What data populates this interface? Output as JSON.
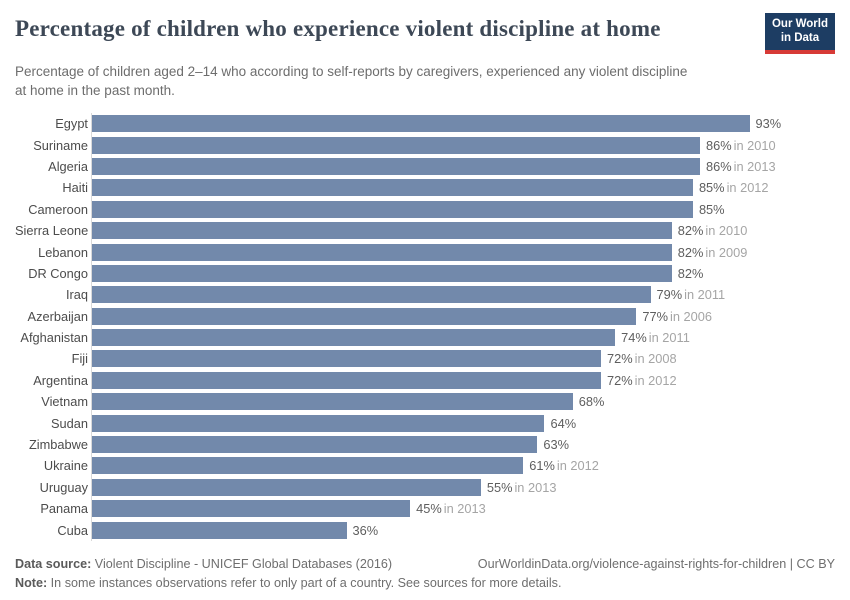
{
  "header": {
    "title": "Percentage of children who experience violent discipline at home",
    "logo": {
      "line1": "Our World",
      "line2": "in Data"
    }
  },
  "subtitle": "Percentage of children aged 2–14 who according to self-reports by caregivers, experienced any violent discipline at home in the past month.",
  "chart_data": {
    "type": "bar",
    "orientation": "horizontal",
    "title": "Percentage of children who experience violent discipline at home",
    "unit": "%",
    "xlim": [
      0,
      100
    ],
    "grid": false,
    "legend": false,
    "categories": [
      "Egypt",
      "Suriname",
      "Algeria",
      "Haiti",
      "Cameroon",
      "Sierra Leone",
      "Lebanon",
      "DR Congo",
      "Iraq",
      "Azerbaijan",
      "Afghanistan",
      "Fiji",
      "Argentina",
      "Vietnam",
      "Sudan",
      "Zimbabwe",
      "Ukraine",
      "Uruguay",
      "Panama",
      "Cuba"
    ],
    "values": [
      93,
      86,
      86,
      85,
      85,
      82,
      82,
      82,
      79,
      77,
      74,
      72,
      72,
      68,
      64,
      63,
      61,
      55,
      45,
      36
    ],
    "year_labels": [
      "",
      "in 2010",
      "in 2013",
      "in 2012",
      "",
      "in 2010",
      "in 2009",
      "",
      "in 2011",
      "in 2006",
      "in 2011",
      "in 2008",
      "in 2012",
      "",
      "",
      "",
      "in 2012",
      "in 2013",
      "in 2013",
      ""
    ]
  },
  "footer": {
    "datasource_label": "Data source:",
    "datasource_text": " Violent Discipline - UNICEF Global Databases (2016)",
    "url_text": "OurWorldinData.org/violence-against-rights-for-children | CC BY",
    "note_label": "Note:",
    "note_text": " In some instances observations refer to only part of a country. See sources for more details."
  },
  "colors": {
    "bar": "#7289ab",
    "axis_line": "#d9d9d9",
    "logo_bg": "#1d3d63",
    "logo_underline": "#d73a36",
    "title_text": "#3d4856"
  }
}
